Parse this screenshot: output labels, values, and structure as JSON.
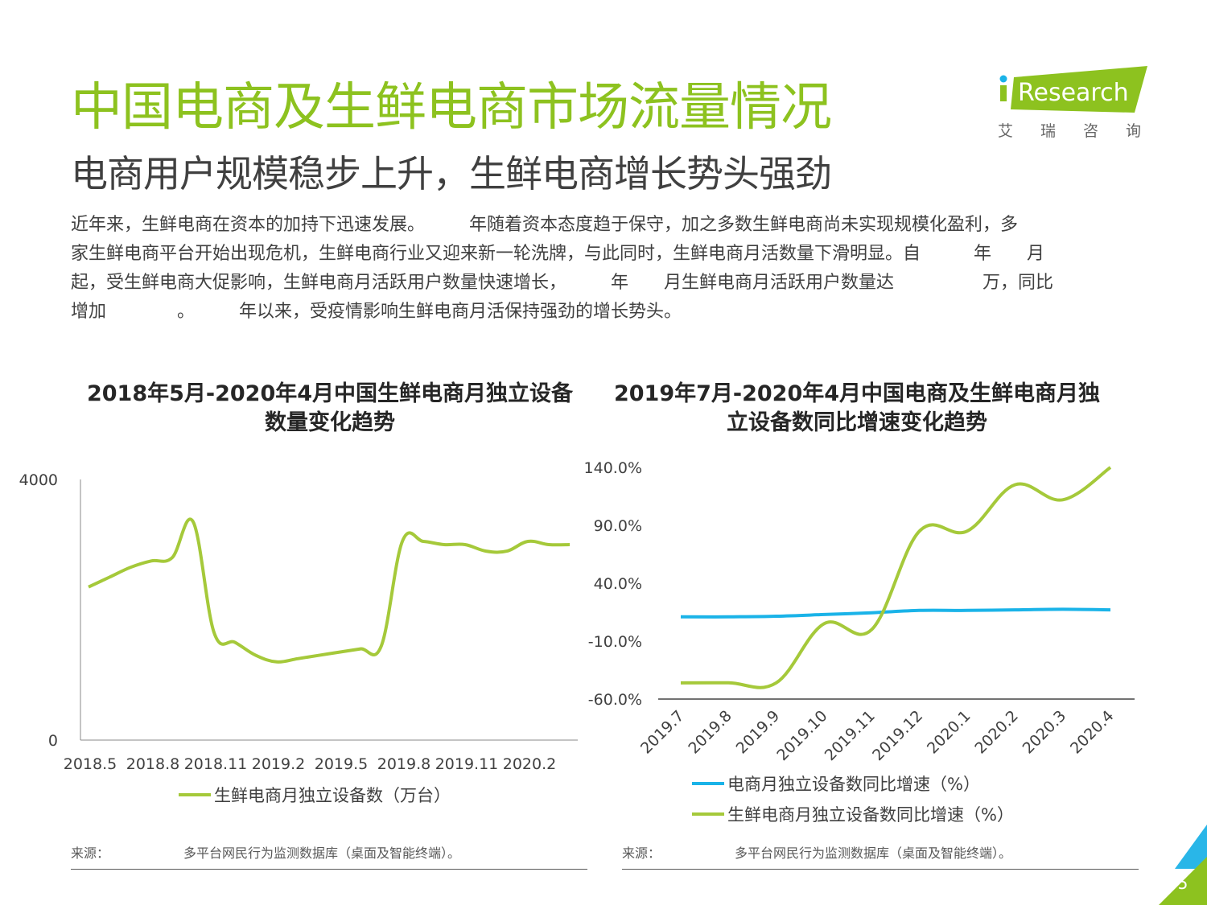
{
  "header": {
    "title": "中国电商及生鲜电商市场流量情况",
    "subtitle": "电商用户规模稳步上升，生鲜电商增长势头强劲",
    "logo_text": "Research",
    "logo_chinese": "艾瑞咨询"
  },
  "intro": {
    "lines": [
      "近年来，生鲜电商在资本的加持下迅速发展。　　　年随着资本态度趋于保守，加之多数生鲜电商尚未实现规模化盈利，多",
      "家生鲜电商平台开始出现危机，生鲜电商行业又迎来新一轮洗牌，与此同时，生鲜电商月活数量下滑明显。自　　　年　　月",
      "起，受生鲜电商大促影响，生鲜电商月活跃用户数量快速增长，　　　年　　月生鲜电商月活跃用户数量达　　　　　万，同比",
      "增加　　　　。　　　年以来，受疫情影响生鲜电商月活保持强劲的增长势头。"
    ]
  },
  "colors": {
    "accent": "#8dc21f",
    "line_green": "#a5c93a",
    "line_blue": "#1ab3e8",
    "corner_blue": "#29b6e8"
  },
  "chart1": {
    "title": "2018年5月-2020年4月中国生鲜电商月独立设备数量变化趋势",
    "source_label": "来源：",
    "source_text": "多平台网民行为监测数据库（桌面及智能终端）。"
  },
  "chart2": {
    "title": "2019年7月-2020年4月中国电商及生鲜电商月独立设备数同比增速变化趋势",
    "source_label": "来源：",
    "source_text": "多平台网民行为监测数据库（桌面及智能终端）。"
  },
  "chart_data": [
    {
      "type": "line",
      "title": "2018年5月-2020年4月中国生鲜电商月独立设备数量变化趋势",
      "x": [
        "2018.5",
        "2018.6",
        "2018.7",
        "2018.8",
        "2018.9",
        "2018.10",
        "2018.11",
        "2018.12",
        "2019.1",
        "2019.2",
        "2019.3",
        "2019.4",
        "2019.5",
        "2019.6",
        "2019.7",
        "2019.8",
        "2019.9",
        "2019.10",
        "2019.11",
        "2019.12",
        "2020.1",
        "2020.2",
        "2020.3",
        "2020.4"
      ],
      "x_tick_labels": [
        "2018.5",
        "2018.8",
        "2018.11",
        "2019.2",
        "2019.5",
        "2019.8",
        "2019.11",
        "2020.2"
      ],
      "y_tick_labels": [
        "0",
        "4000"
      ],
      "ylim": [
        0,
        4000
      ],
      "series": [
        {
          "name": "生鲜电商月独立设备数（万台）",
          "color": "#a5c93a",
          "values": [
            2350,
            2500,
            2650,
            2750,
            2800,
            3350,
            1650,
            1500,
            1300,
            1200,
            1250,
            1300,
            1350,
            1400,
            1450,
            3050,
            3050,
            3000,
            3000,
            2900,
            2900,
            3050,
            3000,
            3000
          ]
        }
      ],
      "legend": [
        "生鲜电商月独立设备数（万台）"
      ],
      "legend_position": "bottom"
    },
    {
      "type": "line",
      "title": "2019年7月-2020年4月中国电商及生鲜电商月独立设备数同比增速变化趋势",
      "x": [
        "2019.7",
        "2019.8",
        "2019.9",
        "2019.10",
        "2019.11",
        "2019.12",
        "2020.1",
        "2020.2",
        "2020.3",
        "2020.4"
      ],
      "y_tick_labels": [
        "-60.0%",
        "-10.0%",
        "40.0%",
        "90.0%",
        "140.0%"
      ],
      "ylim": [
        -60,
        140
      ],
      "series": [
        {
          "name": "电商月独立设备数同比增速（%）",
          "color": "#1ab3e8",
          "values": [
            11.0,
            11.0,
            11.5,
            13.0,
            14.5,
            16.5,
            16.5,
            17.0,
            17.5,
            17.0
          ]
        },
        {
          "name": "生鲜电商月独立设备数同比增速（%）",
          "color": "#a5c93a",
          "values": [
            -46.0,
            -46.0,
            -46.0,
            5.0,
            0.0,
            85.0,
            85.0,
            125.0,
            112.0,
            140.0
          ]
        }
      ],
      "legend": [
        "电商月独立设备数同比增速（%）",
        "生鲜电商月独立设备数同比增速（%）"
      ],
      "legend_position": "bottom"
    }
  ],
  "footer": {
    "page_number": "5"
  }
}
